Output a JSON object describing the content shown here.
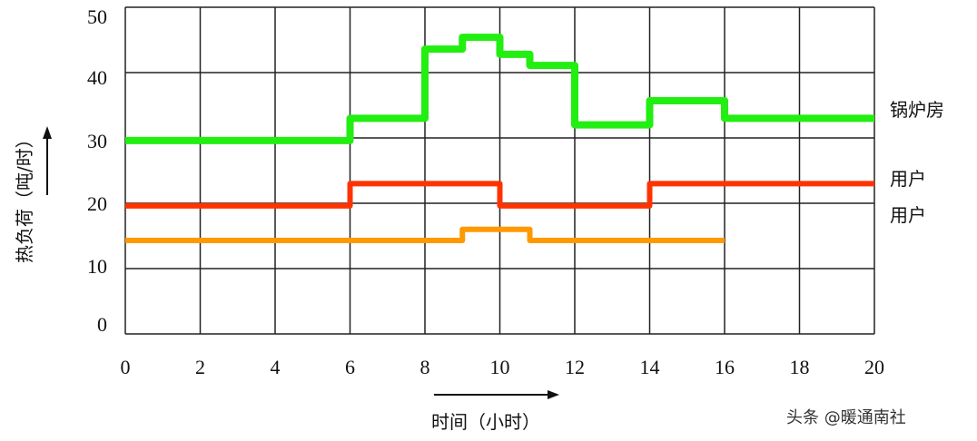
{
  "chart_data": {
    "type": "line",
    "step": true,
    "title": "",
    "xlabel": "时间（小时）",
    "ylabel": "热负荷（吨/时）",
    "xlim": [
      0,
      20
    ],
    "ylim": [
      0,
      50
    ],
    "xticks": [
      "0",
      "2",
      "4",
      "6",
      "8",
      "10",
      "12",
      "14",
      "16",
      "18",
      "20"
    ],
    "yticks": [
      "0",
      "10",
      "20",
      "30",
      "40",
      "50"
    ],
    "grid": true,
    "series": [
      {
        "name": "锅炉房",
        "color": "#22ee11",
        "x": [
          0,
          6,
          8,
          9,
          10,
          10.8,
          12,
          14,
          16,
          20
        ],
        "y": [
          29.6,
          33,
          43.6,
          45.4,
          42.8,
          41.1,
          32,
          35.7,
          33,
          33
        ]
      },
      {
        "name": "用户",
        "color": "#ff3300",
        "x": [
          0,
          6,
          10,
          14,
          20
        ],
        "y": [
          19.6,
          23,
          19.6,
          23,
          23
        ]
      },
      {
        "name": "用户",
        "color": "#ff9900",
        "x": [
          0,
          9,
          10.8,
          16
        ],
        "y": [
          14.3,
          16,
          14.3,
          14.3
        ]
      }
    ]
  },
  "watermark": "头条 @暖通南社"
}
